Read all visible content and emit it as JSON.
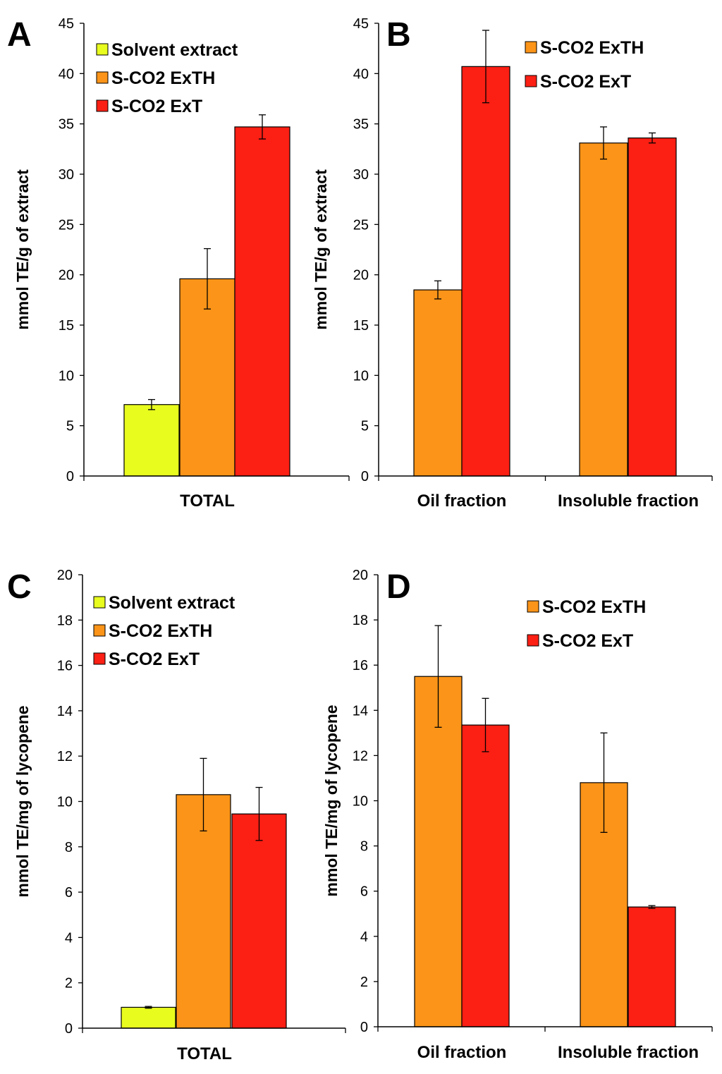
{
  "colors": {
    "solvent": "#e8fc1e",
    "exth": "#fb9418",
    "ext": "#fb1f14",
    "axis": "#000000"
  },
  "chart_data": [
    {
      "panel": "A",
      "type": "bar",
      "ylabel": "mmol TE/g of extract",
      "ylim": [
        0,
        45
      ],
      "yticks": [
        0,
        5,
        10,
        15,
        20,
        25,
        30,
        35,
        40,
        45
      ],
      "categories": [
        "TOTAL"
      ],
      "series": [
        {
          "name": "Solvent extract",
          "color_key": "solvent",
          "values": [
            7.1
          ],
          "errors": [
            0.5
          ]
        },
        {
          "name": "S-CO2 ExTH",
          "color_key": "exth",
          "values": [
            19.6
          ],
          "errors": [
            3.0
          ]
        },
        {
          "name": "S-CO2 ExT",
          "color_key": "ext",
          "values": [
            34.7
          ],
          "errors": [
            1.2
          ]
        }
      ],
      "legend": "top-left"
    },
    {
      "panel": "B",
      "type": "bar",
      "ylabel": "mmol TE/g of extract",
      "ylim": [
        0,
        45
      ],
      "yticks": [
        0,
        5,
        10,
        15,
        20,
        25,
        30,
        35,
        40,
        45
      ],
      "categories": [
        "Oil fraction",
        "Insoluble fraction"
      ],
      "series": [
        {
          "name": "S-CO2 ExTH",
          "color_key": "exth",
          "values": [
            18.5,
            33.1
          ],
          "errors": [
            0.9,
            1.6
          ]
        },
        {
          "name": "S-CO2 ExT",
          "color_key": "ext",
          "values": [
            40.7,
            33.6
          ],
          "errors": [
            3.6,
            0.5
          ]
        }
      ],
      "legend": "top-center"
    },
    {
      "panel": "C",
      "type": "bar",
      "ylabel": "mmol TE/mg of lycopene",
      "ylim": [
        0,
        20
      ],
      "yticks": [
        0,
        2,
        4,
        6,
        8,
        10,
        12,
        14,
        16,
        18,
        20
      ],
      "categories": [
        "TOTAL"
      ],
      "series": [
        {
          "name": "Solvent extract",
          "color_key": "solvent",
          "values": [
            0.92
          ],
          "errors": [
            0.04
          ]
        },
        {
          "name": "S-CO2 ExTH",
          "color_key": "exth",
          "values": [
            10.3
          ],
          "errors": [
            1.6
          ]
        },
        {
          "name": "S-CO2 ExT",
          "color_key": "ext",
          "values": [
            9.45
          ],
          "errors": [
            1.17
          ]
        }
      ],
      "legend": "top-left"
    },
    {
      "panel": "D",
      "type": "bar",
      "ylabel": "mmol TE/mg of lycopene",
      "ylim": [
        0,
        20
      ],
      "yticks": [
        0,
        2,
        4,
        6,
        8,
        10,
        12,
        14,
        16,
        18,
        20
      ],
      "categories": [
        "Oil fraction",
        "Insoluble fraction"
      ],
      "series": [
        {
          "name": "S-CO2 ExTH",
          "color_key": "exth",
          "values": [
            15.5,
            10.8
          ],
          "errors": [
            2.25,
            2.2
          ]
        },
        {
          "name": "S-CO2 ExT",
          "color_key": "ext",
          "values": [
            13.35,
            5.3
          ],
          "errors": [
            1.18,
            0.06
          ]
        }
      ],
      "legend": "top-center"
    }
  ]
}
